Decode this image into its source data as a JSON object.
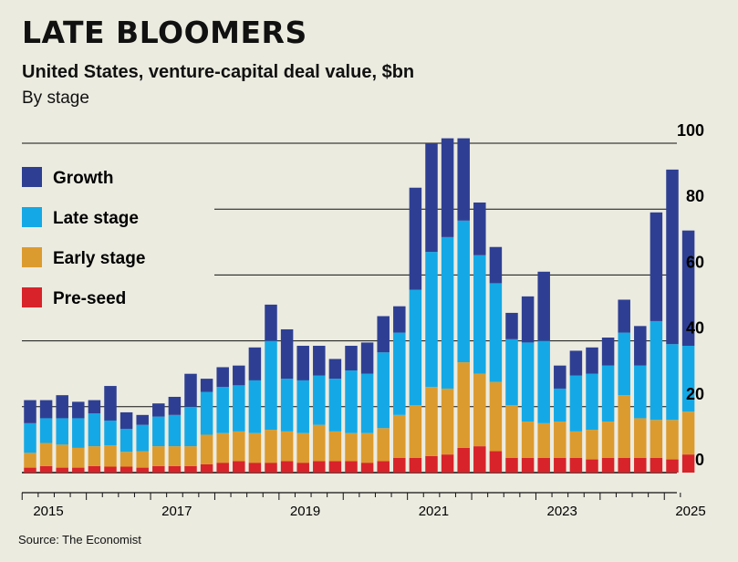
{
  "header": {
    "title": "LATE BLOOMERS",
    "subtitle": "United States, venture-capital deal value, $bn",
    "caption": "By stage"
  },
  "source": "Source: The Economist",
  "colors": {
    "background": "#ecebe0",
    "growth": "#2e3f93",
    "late": "#14a9e6",
    "early": "#dc9b2f",
    "preseed": "#d8232a",
    "gridline": "#111111"
  },
  "chart_data": {
    "type": "bar",
    "stacked": true,
    "title": "LATE BLOOMERS",
    "subtitle": "United States, venture-capital deal value, $bn",
    "ylabel": "By stage",
    "xlabel": "",
    "ylim": [
      0,
      100
    ],
    "yticks": [
      0,
      20,
      40,
      60,
      80,
      100
    ],
    "y_axis_position": "right",
    "xticks": [
      {
        "label": "2015",
        "index": 0
      },
      {
        "label": "2017",
        "index": 8
      },
      {
        "label": "2019",
        "index": 16
      },
      {
        "label": "2021",
        "index": 24
      },
      {
        "label": "2023",
        "index": 32
      },
      {
        "label": "2025",
        "index": 40
      }
    ],
    "legend": {
      "position": "top-left",
      "entries": [
        "Growth",
        "Late stage",
        "Early stage",
        "Pre-seed"
      ]
    },
    "categories": [
      "2015 Q1",
      "2015 Q2",
      "2015 Q3",
      "2015 Q4",
      "2016 Q1",
      "2016 Q2",
      "2016 Q3",
      "2016 Q4",
      "2017 Q1",
      "2017 Q2",
      "2017 Q3",
      "2017 Q4",
      "2018 Q1",
      "2018 Q2",
      "2018 Q3",
      "2018 Q4",
      "2019 Q1",
      "2019 Q2",
      "2019 Q3",
      "2019 Q4",
      "2020 Q1",
      "2020 Q2",
      "2020 Q3",
      "2020 Q4",
      "2021 Q1",
      "2021 Q2",
      "2021 Q3",
      "2021 Q4",
      "2022 Q1",
      "2022 Q2",
      "2022 Q3",
      "2022 Q4",
      "2023 Q1",
      "2023 Q2",
      "2023 Q3",
      "2023 Q4",
      "2024 Q1",
      "2024 Q2",
      "2024 Q3",
      "2024 Q4",
      "2025 Q1",
      "2025 Q2"
    ],
    "series": [
      {
        "name": "Pre-seed",
        "color_key": "preseed",
        "values": [
          1.5,
          2,
          1.5,
          1.5,
          2,
          1.8,
          1.8,
          1.5,
          2,
          2,
          2,
          2.5,
          3,
          3.5,
          3,
          3,
          3.5,
          3,
          3.5,
          3.5,
          3.5,
          3,
          3.5,
          4.5,
          4.5,
          5,
          5.5,
          7.5,
          8,
          6.5,
          4.5,
          4.5,
          4.5,
          4.5,
          4.5,
          4,
          4.5,
          4.5,
          4.5,
          4.5,
          4,
          5.5
        ]
      },
      {
        "name": "Early stage",
        "color_key": "early",
        "values": [
          4.5,
          7,
          7,
          6,
          6,
          6.5,
          4.5,
          5,
          6,
          6,
          6,
          9,
          9,
          9,
          9,
          10,
          9,
          9,
          11,
          9,
          8.5,
          9,
          10,
          13,
          16,
          21,
          20,
          26,
          22,
          21,
          16,
          11,
          10.5,
          11,
          8,
          9,
          11,
          19,
          12,
          11.5,
          12,
          13
        ]
      },
      {
        "name": "Late stage",
        "color_key": "late",
        "values": [
          9,
          7.5,
          8,
          9,
          10,
          7.5,
          7,
          8,
          9,
          9.5,
          12,
          13,
          14,
          14,
          16,
          27,
          16,
          16,
          15,
          16,
          19,
          18,
          23,
          25,
          35,
          41,
          46,
          43,
          36,
          30,
          20,
          24,
          25,
          10,
          17,
          17,
          17,
          19,
          16,
          30,
          23,
          20
        ]
      },
      {
        "name": "Growth",
        "color_key": "growth",
        "values": [
          7,
          5.5,
          7,
          5,
          4,
          10.5,
          5,
          3,
          4,
          5.5,
          10,
          4,
          6,
          6,
          10,
          11,
          15,
          10.5,
          9,
          6,
          7.5,
          9.5,
          11,
          8,
          31,
          33,
          30,
          25,
          16,
          11,
          8,
          14,
          21,
          7,
          7.5,
          8,
          8.5,
          10,
          12,
          33,
          53,
          35
        ]
      }
    ]
  }
}
